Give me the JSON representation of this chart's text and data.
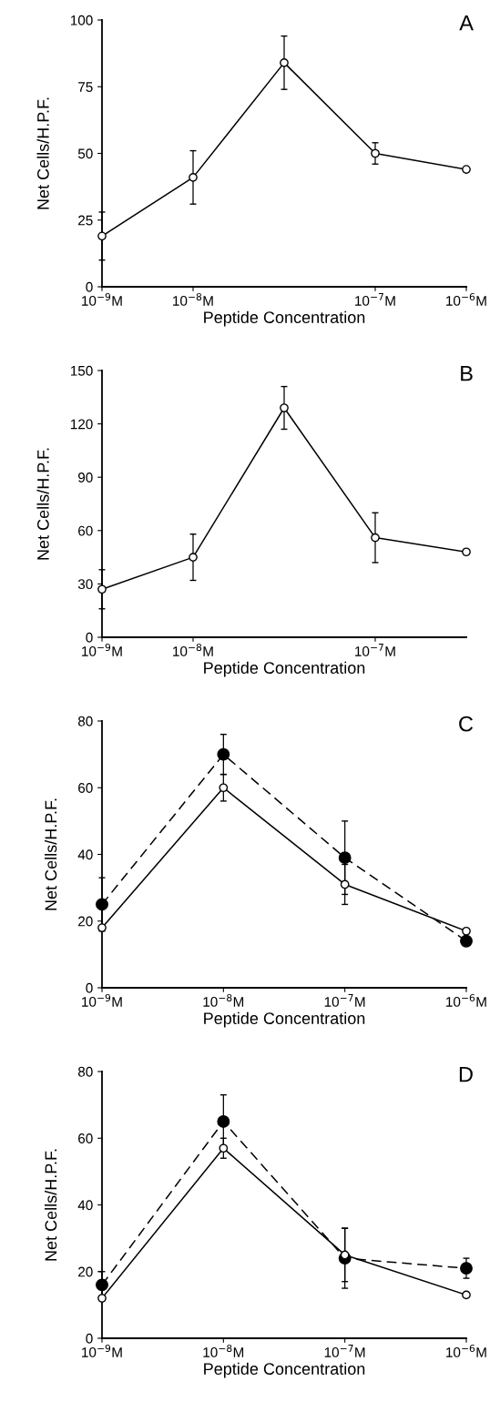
{
  "chart_data": [
    {
      "type": "line",
      "title": "A",
      "xlabel": "Peptide Concentration",
      "ylabel": "Net Cells/H.P.F.",
      "grid": false,
      "legend": false,
      "marker": "circle",
      "categories": [
        "10$^{−9}$M",
        "10$^{−8}$M",
        null,
        "10$^{−7}$M",
        "10$^{−6}$M"
      ],
      "ylim": [
        0,
        100
      ],
      "yticks": [
        0,
        25,
        50,
        75,
        100
      ],
      "series": [
        {
          "color": "#000000",
          "line_style": "solid",
          "values": [
            19,
            41,
            84,
            50,
            44
          ],
          "errors": [
            9,
            10,
            10,
            4,
            null
          ]
        }
      ]
    },
    {
      "type": "line",
      "title": "B",
      "xlabel": "Peptide Concentration",
      "ylabel": "Net Cells/H.P.F.",
      "grid": false,
      "legend": false,
      "marker": "circle",
      "categories": [
        "10$^{−9}$M",
        "10$^{−8}$M",
        null,
        "10$^{−7}$M",
        null
      ],
      "ylim": [
        0,
        150
      ],
      "yticks": [
        0,
        30,
        60,
        90,
        120,
        150
      ],
      "series": [
        {
          "color": "#000000",
          "line_style": "solid",
          "values": [
            27,
            45,
            129,
            56,
            48
          ],
          "errors": [
            11,
            13,
            12,
            14,
            null
          ]
        }
      ]
    },
    {
      "type": "line",
      "title": "C",
      "xlabel": "Peptide Concentration",
      "ylabel": "Net Cells/H.P.F.",
      "grid": false,
      "legend": false,
      "marker": "circle",
      "categories": [
        "10$^{−9}$M",
        "10$^{−8}$M",
        "10$^{−7}$M",
        "10$^{−6}$M"
      ],
      "ylim": [
        0,
        80
      ],
      "yticks": [
        0,
        20,
        40,
        60,
        80
      ],
      "series": [
        {
          "color": "#000000",
          "line_style": "dashed",
          "values": [
            25,
            70,
            39,
            14
          ],
          "errors": [
            8,
            6,
            11,
            null
          ]
        },
        {
          "color": "#000000",
          "line_style": "solid",
          "values": [
            18,
            60,
            31,
            17
          ],
          "errors": [
            null,
            4,
            6,
            null
          ]
        }
      ]
    },
    {
      "type": "line",
      "title": "D",
      "xlabel": "Peptide Concentration",
      "ylabel": "Net Cells/H.P.F.",
      "grid": false,
      "legend": false,
      "marker": "circle",
      "categories": [
        "10$^{−9}$M",
        "10$^{−8}$M",
        "10$^{−7}$M",
        "10$^{−6}$M"
      ],
      "ylim": [
        0,
        80
      ],
      "yticks": [
        0,
        20,
        40,
        60,
        80
      ],
      "series": [
        {
          "color": "#000000",
          "line_style": "dashed",
          "values": [
            16,
            65,
            24,
            21
          ],
          "errors": [
            4,
            8,
            9,
            3
          ]
        },
        {
          "color": "#000000",
          "line_style": "solid",
          "values": [
            12,
            57,
            25,
            13
          ],
          "errors": [
            null,
            3,
            8,
            null
          ]
        }
      ]
    }
  ]
}
